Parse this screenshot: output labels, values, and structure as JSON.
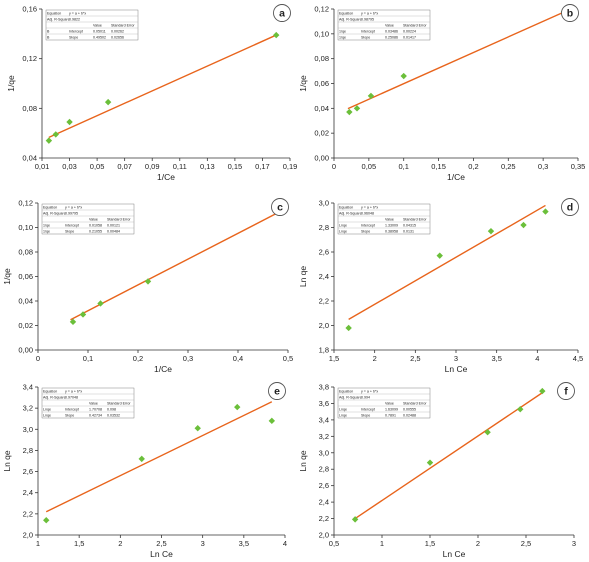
{
  "colors": {
    "marker": "#6bbf3a",
    "fit_line": "#e8641c",
    "axis": "#333333",
    "text": "#222222",
    "badge_border": "#555555"
  },
  "chart_data": [
    {
      "type": "scatter",
      "panel_label": "a",
      "xlabel": "1/Ce",
      "ylabel": "1/qe",
      "xlim": [
        0.01,
        0.19
      ],
      "ylim": [
        0.04,
        0.16
      ],
      "xticks": [
        0.01,
        0.03,
        0.05,
        0.07,
        0.09,
        0.11,
        0.13,
        0.15,
        0.17,
        0.19
      ],
      "xtick_labels": [
        "0,01",
        "0,03",
        "0,05",
        "0,07",
        "0,09",
        "0,11",
        "0,13",
        "0,15",
        "0,17",
        "0,19"
      ],
      "yticks": [
        0.04,
        0.08,
        0.12,
        0.16
      ],
      "ytick_labels": [
        "0,04",
        "0,08",
        "0,12",
        "0,16"
      ],
      "points": [
        [
          0.015,
          0.054
        ],
        [
          0.02,
          0.059
        ],
        [
          0.03,
          0.069
        ],
        [
          0.058,
          0.085
        ],
        [
          0.18,
          0.139
        ]
      ],
      "fit": [
        [
          0.015,
          0.0566
        ],
        [
          0.18,
          0.139
        ]
      ],
      "stats": {
        "rows": [
          [
            "Equation",
            "y = a + b*x",
            "",
            ""
          ],
          [
            "Adj. R-Square",
            "0.9822",
            "",
            ""
          ],
          [
            "",
            "",
            "Value",
            "Standard Error"
          ],
          [
            "B",
            "Intercept",
            "0.05011",
            "0.00262"
          ],
          [
            "B",
            "Slope",
            "0.49502",
            "0.02656"
          ]
        ]
      }
    },
    {
      "type": "scatter",
      "panel_label": "b",
      "xlabel": "1/Ce",
      "ylabel": "1/qe",
      "xlim": [
        0,
        0.35
      ],
      "ylim": [
        0,
        0.12
      ],
      "xticks": [
        0,
        0.05,
        0.1,
        0.15,
        0.2,
        0.25,
        0.3,
        0.35
      ],
      "xtick_labels": [
        "0",
        "0,05",
        "0,1",
        "0,15",
        "0,2",
        "0,25",
        "0,3",
        "0,35"
      ],
      "yticks": [
        0,
        0.02,
        0.04,
        0.06,
        0.08,
        0.1,
        0.12
      ],
      "ytick_labels": [
        "0,00",
        "0,02",
        "0,04",
        "0,06",
        "0,08",
        "0,10",
        "0,12"
      ],
      "points": [
        [
          0.022,
          0.037
        ],
        [
          0.033,
          0.04
        ],
        [
          0.053,
          0.05
        ],
        [
          0.1,
          0.066
        ],
        [
          0.33,
          0.118
        ]
      ],
      "fit": [
        [
          0.02,
          0.0398
        ],
        [
          0.33,
          0.1176
        ]
      ],
      "stats": {
        "rows": [
          [
            "Equation",
            "y = a + b*x",
            "",
            ""
          ],
          [
            "Adj. R-Square",
            "0.98795",
            "",
            ""
          ],
          [
            "",
            "",
            "Value",
            "Standard Error"
          ],
          [
            "1/qe",
            "Intercept",
            "0.03486",
            "0.00224"
          ],
          [
            "1/qe",
            "Slope",
            "0.25086",
            "0.01417"
          ]
        ]
      }
    },
    {
      "type": "scatter",
      "panel_label": "c",
      "xlabel": "1/Ce",
      "ylabel": "1/qe",
      "xlim": [
        0,
        0.5
      ],
      "ylim": [
        0,
        0.12
      ],
      "xticks": [
        0,
        0.1,
        0.2,
        0.3,
        0.4,
        0.5
      ],
      "xtick_labels": [
        "0",
        "0,1",
        "0,2",
        "0,3",
        "0,4",
        "0,5"
      ],
      "yticks": [
        0,
        0.02,
        0.04,
        0.06,
        0.08,
        0.1,
        0.12
      ],
      "ytick_labels": [
        "0,00",
        "0,02",
        "0,04",
        "0,06",
        "0,08",
        "0,10",
        "0,12"
      ],
      "points": [
        [
          0.07,
          0.023
        ],
        [
          0.09,
          0.029
        ],
        [
          0.125,
          0.038
        ],
        [
          0.22,
          0.056
        ],
        [
          0.48,
          0.112
        ]
      ],
      "fit": [
        [
          0.065,
          0.0247
        ],
        [
          0.48,
          0.1121
        ]
      ],
      "stats": {
        "rows": [
          [
            "Equation",
            "y = a + b*x",
            "",
            ""
          ],
          [
            "Adj. R-Square",
            "0.99795",
            "",
            ""
          ],
          [
            "",
            "",
            "Value",
            "Standard Error"
          ],
          [
            "1/qe",
            "Intercept",
            "0.01058",
            "0.00121"
          ],
          [
            "1/qe",
            "Slope",
            "0.21055",
            "0.00484"
          ]
        ]
      }
    },
    {
      "type": "scatter",
      "panel_label": "d",
      "xlabel": "Ln Ce",
      "ylabel": "Ln qe",
      "xlim": [
        1.5,
        4.5
      ],
      "ylim": [
        1.8,
        3.0
      ],
      "xticks": [
        1.5,
        2,
        2.5,
        3,
        3.5,
        4,
        4.5
      ],
      "xtick_labels": [
        "1,5",
        "2",
        "2,5",
        "3",
        "3,5",
        "4",
        "4,5"
      ],
      "yticks": [
        1.8,
        2.0,
        2.2,
        2.4,
        2.6,
        2.8,
        3.0
      ],
      "ytick_labels": [
        "1,8",
        "2,0",
        "2,2",
        "2,4",
        "2,6",
        "2,8",
        "3,0"
      ],
      "points": [
        [
          1.68,
          1.98
        ],
        [
          2.8,
          2.57
        ],
        [
          3.43,
          2.77
        ],
        [
          3.83,
          2.82
        ],
        [
          4.1,
          2.93
        ]
      ],
      "fit": [
        [
          1.68,
          2.05
        ],
        [
          4.1,
          2.98
        ]
      ],
      "stats": {
        "rows": [
          [
            "Equation",
            "y = a + b*x",
            "",
            ""
          ],
          [
            "Adj. R-Square",
            "0.96048",
            "",
            ""
          ],
          [
            "",
            "",
            "Value",
            "Standard Error"
          ],
          [
            "Lnqe",
            "Intercept",
            "1.33009",
            "0.04315"
          ],
          [
            "Lnqe",
            "Slope",
            "0.38958",
            "0.0131"
          ]
        ]
      }
    },
    {
      "type": "scatter",
      "panel_label": "e",
      "xlabel": "Ln Ce",
      "ylabel": "Ln qe",
      "xlim": [
        1,
        4
      ],
      "ylim": [
        2.0,
        3.4
      ],
      "xticks": [
        1,
        1.5,
        2,
        2.5,
        3,
        3.5,
        4
      ],
      "xtick_labels": [
        "1",
        "1,5",
        "2",
        "2,5",
        "3",
        "3,5",
        "4"
      ],
      "yticks": [
        2.0,
        2.2,
        2.4,
        2.6,
        2.8,
        3.0,
        3.2,
        3.4
      ],
      "ytick_labels": [
        "2,0",
        "2,2",
        "2,4",
        "2,6",
        "2,8",
        "3,0",
        "3,2",
        "3,4"
      ],
      "points": [
        [
          1.1,
          2.14
        ],
        [
          2.26,
          2.72
        ],
        [
          2.94,
          3.01
        ],
        [
          3.42,
          3.21
        ],
        [
          3.84,
          3.08
        ]
      ],
      "fit": [
        [
          1.1,
          2.22
        ],
        [
          3.84,
          3.26
        ]
      ],
      "stats": {
        "rows": [
          [
            "Equation",
            "y = a + b*x",
            "",
            ""
          ],
          [
            "Adj. R-Square",
            "0.97048",
            "",
            ""
          ],
          [
            "",
            "",
            "Value",
            "Standard Error"
          ],
          [
            "Lnqe",
            "Intercept",
            "1.70708",
            "0.098"
          ],
          [
            "Lnqe",
            "Slope",
            "0.42734",
            "0.03532"
          ]
        ]
      }
    },
    {
      "type": "scatter",
      "panel_label": "f",
      "xlabel": "Ln Ce",
      "ylabel": "Ln qe",
      "xlim": [
        0.5,
        3
      ],
      "ylim": [
        2.0,
        3.8
      ],
      "xticks": [
        0.5,
        1,
        1.5,
        2,
        2.5,
        3
      ],
      "xtick_labels": [
        "0,5",
        "1",
        "1,5",
        "2",
        "2,5",
        "3"
      ],
      "yticks": [
        2.0,
        2.2,
        2.4,
        2.6,
        2.8,
        3.0,
        3.2,
        3.4,
        3.6,
        3.8
      ],
      "ytick_labels": [
        "2,0",
        "2,2",
        "2,4",
        "2,6",
        "2,8",
        "3,0",
        "3,2",
        "3,4",
        "3,6",
        "3,8"
      ],
      "points": [
        [
          0.72,
          2.19
        ],
        [
          1.5,
          2.88
        ],
        [
          2.1,
          3.25
        ],
        [
          2.44,
          3.53
        ],
        [
          2.67,
          3.75
        ]
      ],
      "fit": [
        [
          0.72,
          2.2
        ],
        [
          2.67,
          3.73
        ]
      ],
      "stats": {
        "rows": [
          [
            "Equation",
            "y = a + b*x",
            "",
            ""
          ],
          [
            "Adj. R-Square",
            "0.994",
            "",
            ""
          ],
          [
            "",
            "",
            "Value",
            "Standard Error"
          ],
          [
            "Lnqe",
            "Intercept",
            "1.63099",
            "0.00555"
          ],
          [
            "Lnqe",
            "Slope",
            "0.7891",
            "0.02488"
          ]
        ]
      }
    }
  ]
}
